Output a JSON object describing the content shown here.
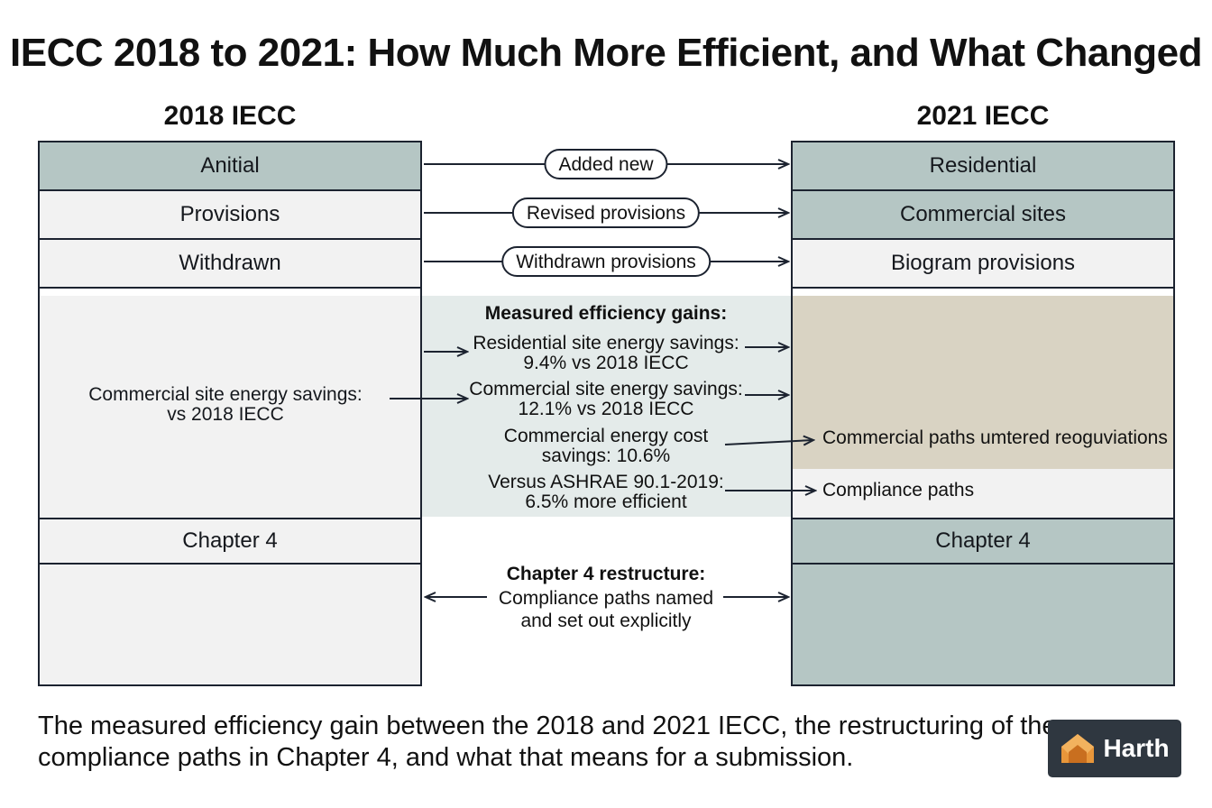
{
  "title": "IECC 2018 to 2021: How Much More Efficient, and What Changed",
  "left_column": {
    "header": "2018 IECC",
    "rows": [
      "Anitial",
      "Provisions",
      "Withdrawn"
    ],
    "savings_note": "Commercial site energy savings:\nvs 2018 IECC",
    "chapter": "Chapter 4"
  },
  "right_column": {
    "header": "2021 IECC",
    "rows": [
      "Residential",
      "Commercial sites",
      "Biogram provisions"
    ],
    "notes": [
      "Commercial paths umtered reoguviations",
      "Compliance paths"
    ],
    "chapter": "Chapter 4"
  },
  "connectors": [
    "Added new",
    "Revised provisions",
    "Withdrawn provisions"
  ],
  "efficiency": {
    "heading": "Measured efficiency gains:",
    "items": [
      "Residential site energy savings:\n9.4% vs 2018 IECC",
      "Commercial site energy savings:\n12.1% vs 2018 IECC",
      "Commercial energy cost\nsavings: 10.6%",
      "Versus ASHRAE 90.1-2019:\n6.5% more efficient"
    ]
  },
  "chapter_restructure": {
    "heading": "Chapter 4 restructure:",
    "body": "Compliance paths named\nand set out explicitly"
  },
  "caption": "The measured efficiency gain between the 2018 and 2021 IECC, the restructuring of the\ncompliance paths in Chapter 4, and what that means for a submission.",
  "logo": {
    "text": "Harth",
    "icon": "house-logo-icon"
  },
  "colors": {
    "teal": "#b5c6c4",
    "light": "#f2f2f2",
    "tan": "#d9d3c3",
    "panel": "#e4ebea",
    "ink": "#1c2330"
  }
}
